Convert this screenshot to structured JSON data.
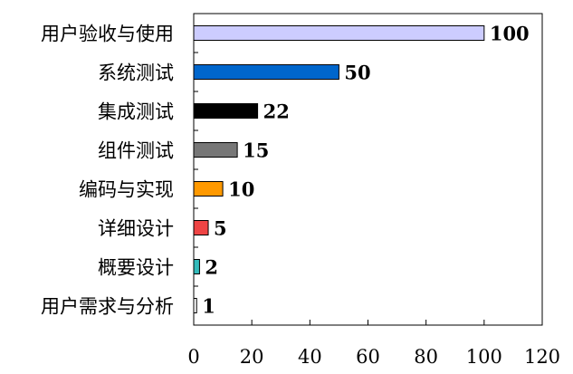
{
  "chart_data": {
    "type": "bar",
    "orientation": "horizontal",
    "categories": [
      "用户需求与分析",
      "概要设计",
      "详细设计",
      "编码与实现",
      "组件测试",
      "集成测试",
      "系统测试",
      "用户验收与使用"
    ],
    "values": [
      1,
      2,
      5,
      10,
      15,
      22,
      50,
      100
    ],
    "value_labels": [
      "1",
      "2",
      "5",
      "10",
      "15",
      "22",
      "50",
      "100"
    ],
    "colors": [
      "#ffffff",
      "#33bbbb",
      "#ee4444",
      "#ff9900",
      "#777777",
      "#000000",
      "#0066cc",
      "#ccccff"
    ],
    "xlim": [
      0,
      120
    ],
    "x_ticks": [
      "0",
      "20",
      "40",
      "60",
      "80",
      "100",
      "120"
    ],
    "title": "",
    "xlabel": "",
    "ylabel": "",
    "grid": false,
    "legend": "none"
  }
}
